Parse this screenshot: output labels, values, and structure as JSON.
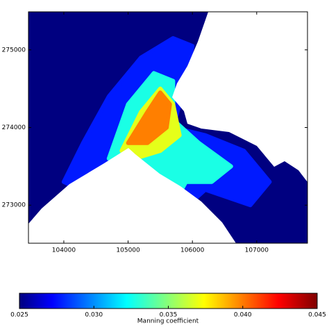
{
  "chart_data": {
    "type": "contourf",
    "xlim": [
      103450,
      107790
    ],
    "ylim": [
      272510,
      275490
    ],
    "xticks": [
      104000,
      105000,
      106000,
      107000
    ],
    "yticks": [
      273000,
      274000,
      275000
    ],
    "background_level": 0.025,
    "regions": [
      {
        "level": 0.028,
        "x": [
          104000,
          104300,
          104700,
          105200,
          105700,
          106000,
          105900,
          105700,
          106200,
          106800,
          107200,
          106900,
          106200,
          105800,
          105200,
          104500
        ],
        "y": [
          273300,
          273800,
          274400,
          274900,
          275150,
          275050,
          274600,
          274000,
          273900,
          273700,
          273300,
          273000,
          273200,
          272900,
          273400,
          273100
        ]
      },
      {
        "level": 0.033,
        "x": [
          104700,
          105000,
          105400,
          105700,
          105700,
          106100,
          106600,
          106300,
          105900,
          105700,
          105400,
          105000
        ],
        "y": [
          273600,
          274300,
          274700,
          274600,
          274100,
          273800,
          273500,
          273300,
          273300,
          273000,
          273400,
          273500
        ]
      },
      {
        "level": 0.037,
        "x": [
          104900,
          105200,
          105500,
          105700,
          105800,
          105500,
          105100
        ],
        "y": [
          273700,
          274200,
          274500,
          274300,
          273900,
          273700,
          273600
        ]
      },
      {
        "level": 0.04,
        "x": [
          105000,
          105300,
          105500,
          105650,
          105600,
          105300
        ],
        "y": [
          273800,
          274200,
          274450,
          274300,
          274000,
          273800
        ]
      }
    ],
    "colorbar": {
      "label": "Manning coefficient",
      "clim": [
        0.025,
        0.045
      ],
      "ticks": [
        0.025,
        {
          "value": 0.03,
          "label": "0.030"
        },
        0.035,
        {
          "value": 0.04,
          "label": "0.040"
        },
        0.045
      ]
    }
  }
}
